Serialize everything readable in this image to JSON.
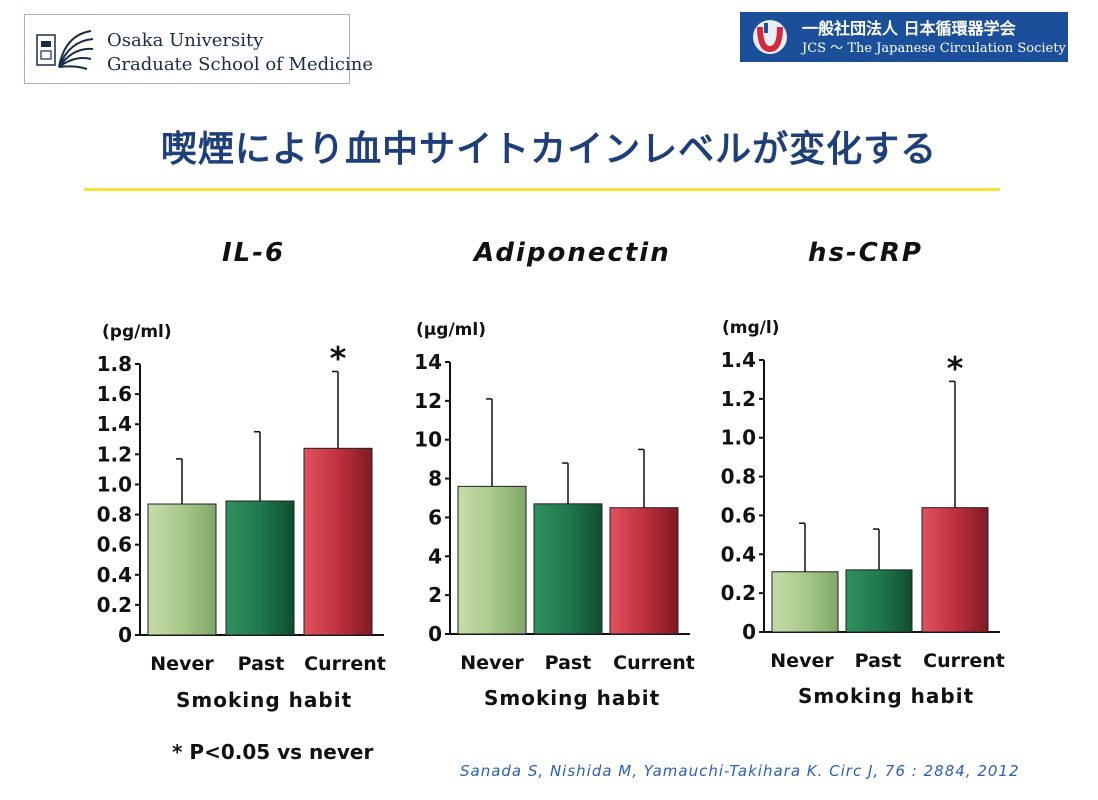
{
  "header": {
    "left_logo": {
      "line1": "Osaka University",
      "line2": "Graduate School of Medicine"
    },
    "right_logo": {
      "line1": "一般社団法人 日本循環器学会",
      "line2": "JCS ～ The Japanese Circulation Society"
    }
  },
  "title": "喫煙により血中サイトカインレベルが変化する",
  "colors": {
    "never": "#a9c98a",
    "past": "#1f7a4e",
    "current": "#c0313f",
    "title": "#1f3f7a",
    "rule": "#f3e33b"
  },
  "footnote": "* P<0.05 vs never",
  "citation": "Sanada S, Nishida M, Yamauchi-Takihara K. Circ J, 76 : 2884, 2012",
  "chart_data": [
    {
      "type": "bar",
      "title": "IL-6",
      "unit": "(pg/ml)",
      "xlabel": "Smoking  habit",
      "categories": [
        "Never",
        "Past",
        "Current"
      ],
      "values": [
        0.87,
        0.89,
        1.24
      ],
      "errors": [
        0.3,
        0.46,
        0.51
      ],
      "significance": [
        "",
        "",
        "*"
      ],
      "ylim": [
        0,
        1.8
      ],
      "yticks": [
        "0",
        "0.2",
        "0.4",
        "0.6",
        "0.8",
        "1.0",
        "1.2",
        "1.4",
        "1.6",
        "1.8"
      ]
    },
    {
      "type": "bar",
      "title": "Adiponectin",
      "unit": "(μg/ml)",
      "xlabel": "Smoking  habit",
      "categories": [
        "Never",
        "Past",
        "Current"
      ],
      "values": [
        7.6,
        6.7,
        6.5
      ],
      "errors": [
        4.5,
        2.1,
        3.0
      ],
      "significance": [
        "",
        "",
        ""
      ],
      "ylim": [
        0,
        14
      ],
      "yticks": [
        "0",
        "2",
        "4",
        "6",
        "8",
        "10",
        "12",
        "14"
      ]
    },
    {
      "type": "bar",
      "title": "hs-CRP",
      "unit": "(mg/l)",
      "xlabel": "Smoking  habit",
      "categories": [
        "Never",
        "Past",
        "Current"
      ],
      "values": [
        0.31,
        0.32,
        0.64
      ],
      "errors": [
        0.25,
        0.21,
        0.65
      ],
      "significance": [
        "",
        "",
        "*"
      ],
      "ylim": [
        0,
        1.4
      ],
      "yticks": [
        "0",
        "0.2",
        "0.4",
        "0.6",
        "0.8",
        "1.0",
        "1.2",
        "1.4"
      ]
    }
  ]
}
